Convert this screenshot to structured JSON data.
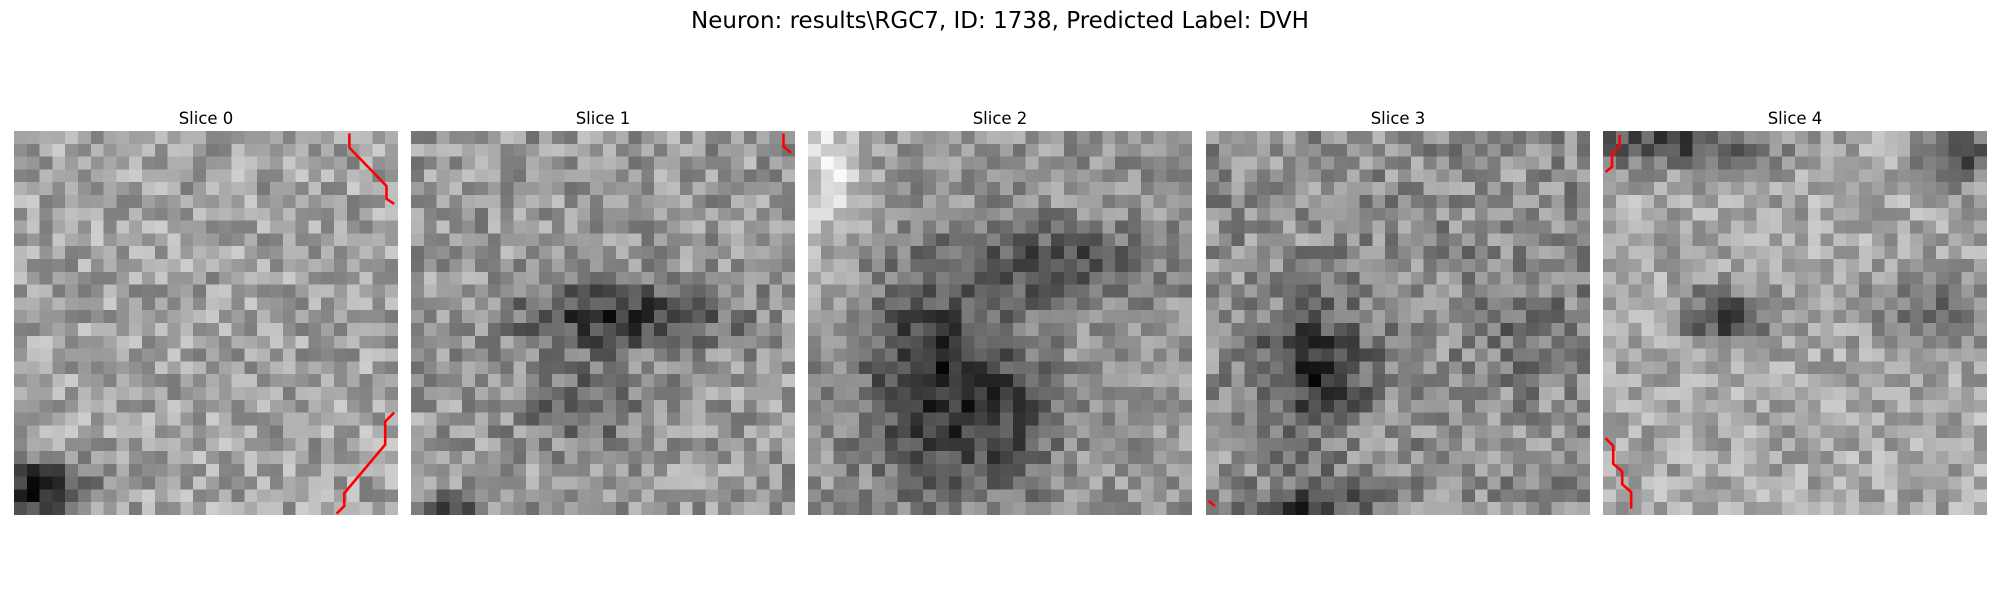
{
  "figure": {
    "title": "Neuron: results\\RGC7, ID: 1738, Predicted Label: DVH",
    "neuron_path": "results\\RGC7",
    "neuron_id": 1738,
    "predicted_label": "DVH",
    "colormap": "gray",
    "trace_color": "#ff0000"
  },
  "slices": [
    {
      "label": "Slice 0"
    },
    {
      "label": "Slice 1"
    },
    {
      "label": "Slice 2"
    },
    {
      "label": "Slice 3"
    },
    {
      "label": "Slice 4"
    }
  ]
}
